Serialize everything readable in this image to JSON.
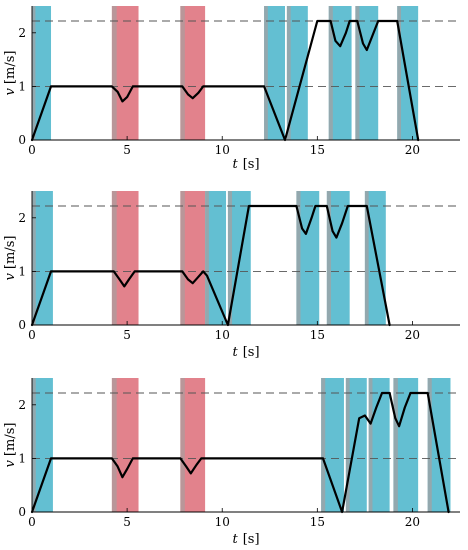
{
  "chart_data": [
    {
      "type": "line",
      "xlabel_var": "t",
      "xlabel_unit": "[s]",
      "ylabel_var": "v",
      "ylabel_unit": "[m/s]",
      "xlim": [
        0,
        22.5
      ],
      "ylim": [
        0,
        2.5
      ],
      "x_ticks": [
        "0",
        "5",
        "10",
        "15",
        "20"
      ],
      "y_ticks": [
        "0",
        "1",
        "2"
      ],
      "ref_lines": [
        1.0,
        2.22
      ],
      "colors": {
        "cyan": "#5BBCD0",
        "red": "#E07B86",
        "mix": "#A89E9E",
        "line": "#000000",
        "dash": "#555555"
      },
      "bands": [
        {
          "x0": 0.0,
          "x1": 1.0,
          "color": "cyan"
        },
        {
          "x0": 4.2,
          "x1": 5.6,
          "color": "red"
        },
        {
          "x0": 7.8,
          "x1": 9.1,
          "color": "red"
        },
        {
          "x0": 12.2,
          "x1": 13.3,
          "color": "cyan"
        },
        {
          "x0": 13.4,
          "x1": 14.5,
          "color": "cyan"
        },
        {
          "x0": 15.6,
          "x1": 16.8,
          "color": "cyan"
        },
        {
          "x0": 17.0,
          "x1": 18.2,
          "color": "cyan"
        },
        {
          "x0": 19.2,
          "x1": 20.3,
          "color": "cyan"
        }
      ],
      "series": [
        {
          "points": [
            [
              0,
              0
            ],
            [
              1.0,
              1.0
            ],
            [
              4.2,
              1.0
            ],
            [
              4.5,
              0.9
            ],
            [
              4.75,
              0.72
            ],
            [
              5.0,
              0.8
            ],
            [
              5.3,
              1.0
            ],
            [
              7.9,
              1.0
            ],
            [
              8.2,
              0.85
            ],
            [
              8.45,
              0.78
            ],
            [
              8.75,
              0.88
            ],
            [
              9.0,
              1.0
            ],
            [
              12.2,
              1.0
            ],
            [
              13.3,
              0.0
            ],
            [
              15.0,
              2.22
            ],
            [
              15.7,
              2.22
            ],
            [
              15.95,
              1.85
            ],
            [
              16.2,
              1.75
            ],
            [
              16.5,
              2.0
            ],
            [
              16.7,
              2.22
            ],
            [
              17.1,
              2.22
            ],
            [
              17.4,
              1.8
            ],
            [
              17.6,
              1.68
            ],
            [
              17.9,
              1.95
            ],
            [
              18.2,
              2.22
            ],
            [
              19.2,
              2.22
            ],
            [
              20.3,
              0.0
            ]
          ]
        }
      ]
    },
    {
      "type": "line",
      "xlabel_var": "t",
      "xlabel_unit": "[s]",
      "ylabel_var": "v",
      "ylabel_unit": "[m/s]",
      "xlim": [
        0,
        22.5
      ],
      "ylim": [
        0,
        2.5
      ],
      "x_ticks": [
        "0",
        "5",
        "10",
        "15",
        "20"
      ],
      "y_ticks": [
        "0",
        "1",
        "2"
      ],
      "ref_lines": [
        1.0,
        2.22
      ],
      "colors": {
        "cyan": "#5BBCD0",
        "red": "#E07B86",
        "mix": "#A89E9E",
        "line": "#000000",
        "dash": "#555555"
      },
      "bands": [
        {
          "x0": 0.0,
          "x1": 1.1,
          "color": "cyan"
        },
        {
          "x0": 4.2,
          "x1": 5.6,
          "color": "red"
        },
        {
          "x0": 7.8,
          "x1": 9.1,
          "color": "red"
        },
        {
          "x0": 9.1,
          "x1": 10.2,
          "color": "cyan"
        },
        {
          "x0": 10.3,
          "x1": 11.5,
          "color": "cyan"
        },
        {
          "x0": 13.9,
          "x1": 15.1,
          "color": "cyan"
        },
        {
          "x0": 15.5,
          "x1": 16.7,
          "color": "cyan"
        },
        {
          "x0": 17.5,
          "x1": 18.6,
          "color": "cyan"
        }
      ],
      "series": [
        {
          "points": [
            [
              0,
              0
            ],
            [
              1.0,
              1.0
            ],
            [
              4.3,
              1.0
            ],
            [
              4.6,
              0.85
            ],
            [
              4.85,
              0.72
            ],
            [
              5.1,
              0.85
            ],
            [
              5.4,
              1.0
            ],
            [
              7.9,
              1.0
            ],
            [
              8.2,
              0.85
            ],
            [
              8.45,
              0.78
            ],
            [
              8.7,
              0.88
            ],
            [
              9.0,
              1.0
            ],
            [
              9.2,
              0.92
            ],
            [
              10.3,
              0.0
            ],
            [
              11.4,
              2.22
            ],
            [
              13.9,
              2.22
            ],
            [
              14.2,
              1.8
            ],
            [
              14.4,
              1.7
            ],
            [
              14.7,
              2.0
            ],
            [
              14.9,
              2.22
            ],
            [
              15.5,
              2.22
            ],
            [
              15.8,
              1.75
            ],
            [
              16.0,
              1.63
            ],
            [
              16.3,
              1.9
            ],
            [
              16.6,
              2.22
            ],
            [
              17.6,
              2.22
            ],
            [
              18.8,
              0.0
            ]
          ]
        }
      ]
    },
    {
      "type": "line",
      "xlabel_var": "t",
      "xlabel_unit": "[s]",
      "ylabel_var": "v",
      "ylabel_unit": "[m/s]",
      "xlim": [
        0,
        22.5
      ],
      "ylim": [
        0,
        2.5
      ],
      "x_ticks": [
        "0",
        "5",
        "10",
        "15",
        "20"
      ],
      "y_ticks": [
        "0",
        "1",
        "2"
      ],
      "ref_lines": [
        1.0,
        2.22
      ],
      "colors": {
        "cyan": "#5BBCD0",
        "red": "#E07B86",
        "mix": "#A89E9E",
        "line": "#000000",
        "dash": "#555555"
      },
      "bands": [
        {
          "x0": 0.0,
          "x1": 1.1,
          "color": "cyan"
        },
        {
          "x0": 4.2,
          "x1": 5.6,
          "color": "red"
        },
        {
          "x0": 7.8,
          "x1": 9.1,
          "color": "red"
        },
        {
          "x0": 15.2,
          "x1": 16.4,
          "color": "cyan"
        },
        {
          "x0": 16.5,
          "x1": 17.6,
          "color": "cyan"
        },
        {
          "x0": 17.7,
          "x1": 18.8,
          "color": "cyan"
        },
        {
          "x0": 19.0,
          "x1": 20.3,
          "color": "cyan"
        },
        {
          "x0": 20.8,
          "x1": 22.0,
          "color": "cyan"
        }
      ],
      "series": [
        {
          "points": [
            [
              0,
              0
            ],
            [
              1.0,
              1.0
            ],
            [
              4.2,
              1.0
            ],
            [
              4.5,
              0.85
            ],
            [
              4.75,
              0.65
            ],
            [
              5.0,
              0.8
            ],
            [
              5.3,
              1.0
            ],
            [
              7.8,
              1.0
            ],
            [
              8.1,
              0.85
            ],
            [
              8.35,
              0.72
            ],
            [
              8.65,
              0.88
            ],
            [
              8.9,
              1.0
            ],
            [
              15.3,
              1.0
            ],
            [
              16.3,
              0.0
            ],
            [
              17.2,
              1.75
            ],
            [
              17.5,
              1.8
            ],
            [
              17.8,
              1.65
            ],
            [
              18.1,
              1.95
            ],
            [
              18.4,
              2.22
            ],
            [
              18.8,
              2.22
            ],
            [
              19.1,
              1.75
            ],
            [
              19.3,
              1.6
            ],
            [
              19.6,
              1.95
            ],
            [
              19.9,
              2.22
            ],
            [
              20.8,
              2.22
            ],
            [
              21.9,
              0.0
            ]
          ]
        }
      ]
    }
  ]
}
